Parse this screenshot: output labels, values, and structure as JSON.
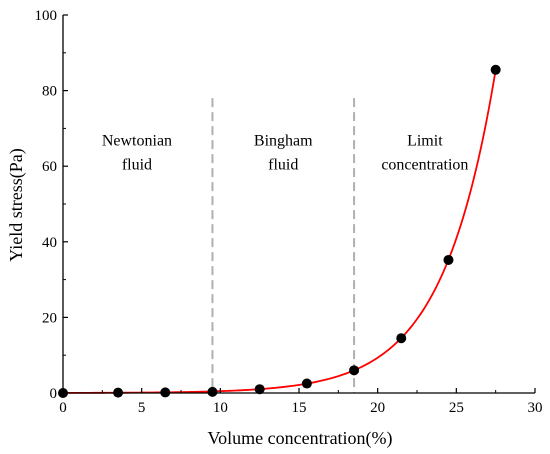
{
  "chart_data": {
    "type": "scatter",
    "title": "",
    "xlabel": "Volume concentration(%)",
    "ylabel": "Yield stress(Pa)",
    "xlim": [
      0,
      30
    ],
    "ylim": [
      0,
      100
    ],
    "xticks": [
      0,
      5,
      10,
      15,
      20,
      25,
      30
    ],
    "yticks": [
      0,
      20,
      40,
      60,
      80,
      100
    ],
    "grid": false,
    "series": [
      {
        "points": [
          [
            0,
            0
          ],
          [
            3.5,
            0.1
          ],
          [
            6.5,
            0.15
          ],
          [
            9.5,
            0.3
          ],
          [
            12.5,
            1.0
          ],
          [
            15.5,
            2.5
          ],
          [
            18.5,
            6.0
          ],
          [
            21.5,
            14.5
          ],
          [
            24.5,
            35.2
          ],
          [
            27.5,
            85.5
          ]
        ],
        "marker_color": "#000000"
      }
    ],
    "fit_curve": {
      "color": "#ff0000",
      "model": "exponential",
      "x_range": [
        0,
        27.5
      ]
    },
    "dividers": {
      "x": [
        9.5,
        18.5
      ],
      "color": "#b0b0b0",
      "style": "dashed"
    },
    "regions": [
      {
        "label_lines": [
          "Newtonian",
          "fluid"
        ],
        "x_center": 4.7
      },
      {
        "label_lines": [
          "Bingham",
          "fluid"
        ],
        "x_center": 14.0
      },
      {
        "label_lines": [
          "Limit",
          "concentration"
        ],
        "x_center": 23.0
      }
    ]
  }
}
